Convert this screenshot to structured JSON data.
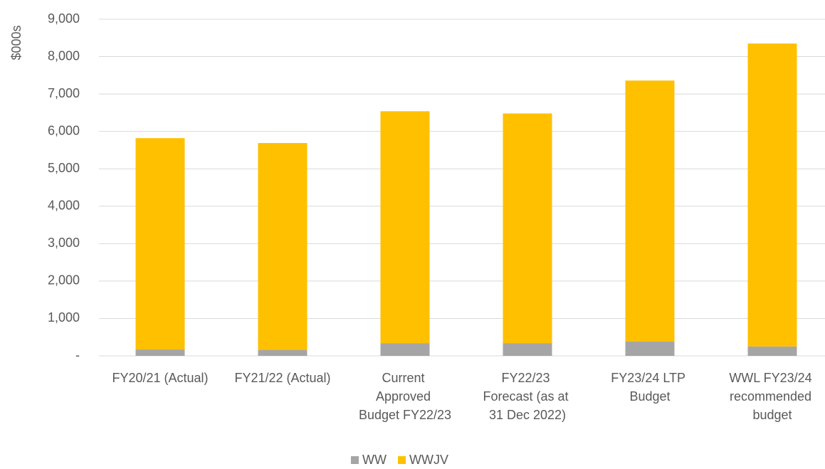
{
  "chart_data": {
    "type": "stacked_bar",
    "y_label": "$000s",
    "categories": [
      "FY20/21 (Actual)",
      "FY21/22 (Actual)",
      "Current Approved Budget FY22/23",
      "FY22/23 Forecast (as at 31 Dec 2022)",
      "FY23/24 LTP Budget",
      "WWL FY23/24 recommended budget"
    ],
    "series": [
      {
        "name": "WW",
        "color": "#a5a5a5",
        "values": [
          170,
          160,
          340,
          340,
          380,
          250
        ]
      },
      {
        "name": "WWJV",
        "color": "#ffc000",
        "values": [
          5650,
          5530,
          6200,
          6140,
          6980,
          8100
        ]
      }
    ],
    "ylim": [
      0,
      9000
    ],
    "yticks": [
      {
        "value": 0,
        "label": "-"
      },
      {
        "value": 1000,
        "label": "1,000"
      },
      {
        "value": 2000,
        "label": "2,000"
      },
      {
        "value": 3000,
        "label": "3,000"
      },
      {
        "value": 4000,
        "label": "4,000"
      },
      {
        "value": 5000,
        "label": "5,000"
      },
      {
        "value": 6000,
        "label": "6,000"
      },
      {
        "value": 7000,
        "label": "7,000"
      },
      {
        "value": 8000,
        "label": "8,000"
      },
      {
        "value": 9000,
        "label": "9,000"
      }
    ],
    "grid": true,
    "legend": "bottom"
  }
}
